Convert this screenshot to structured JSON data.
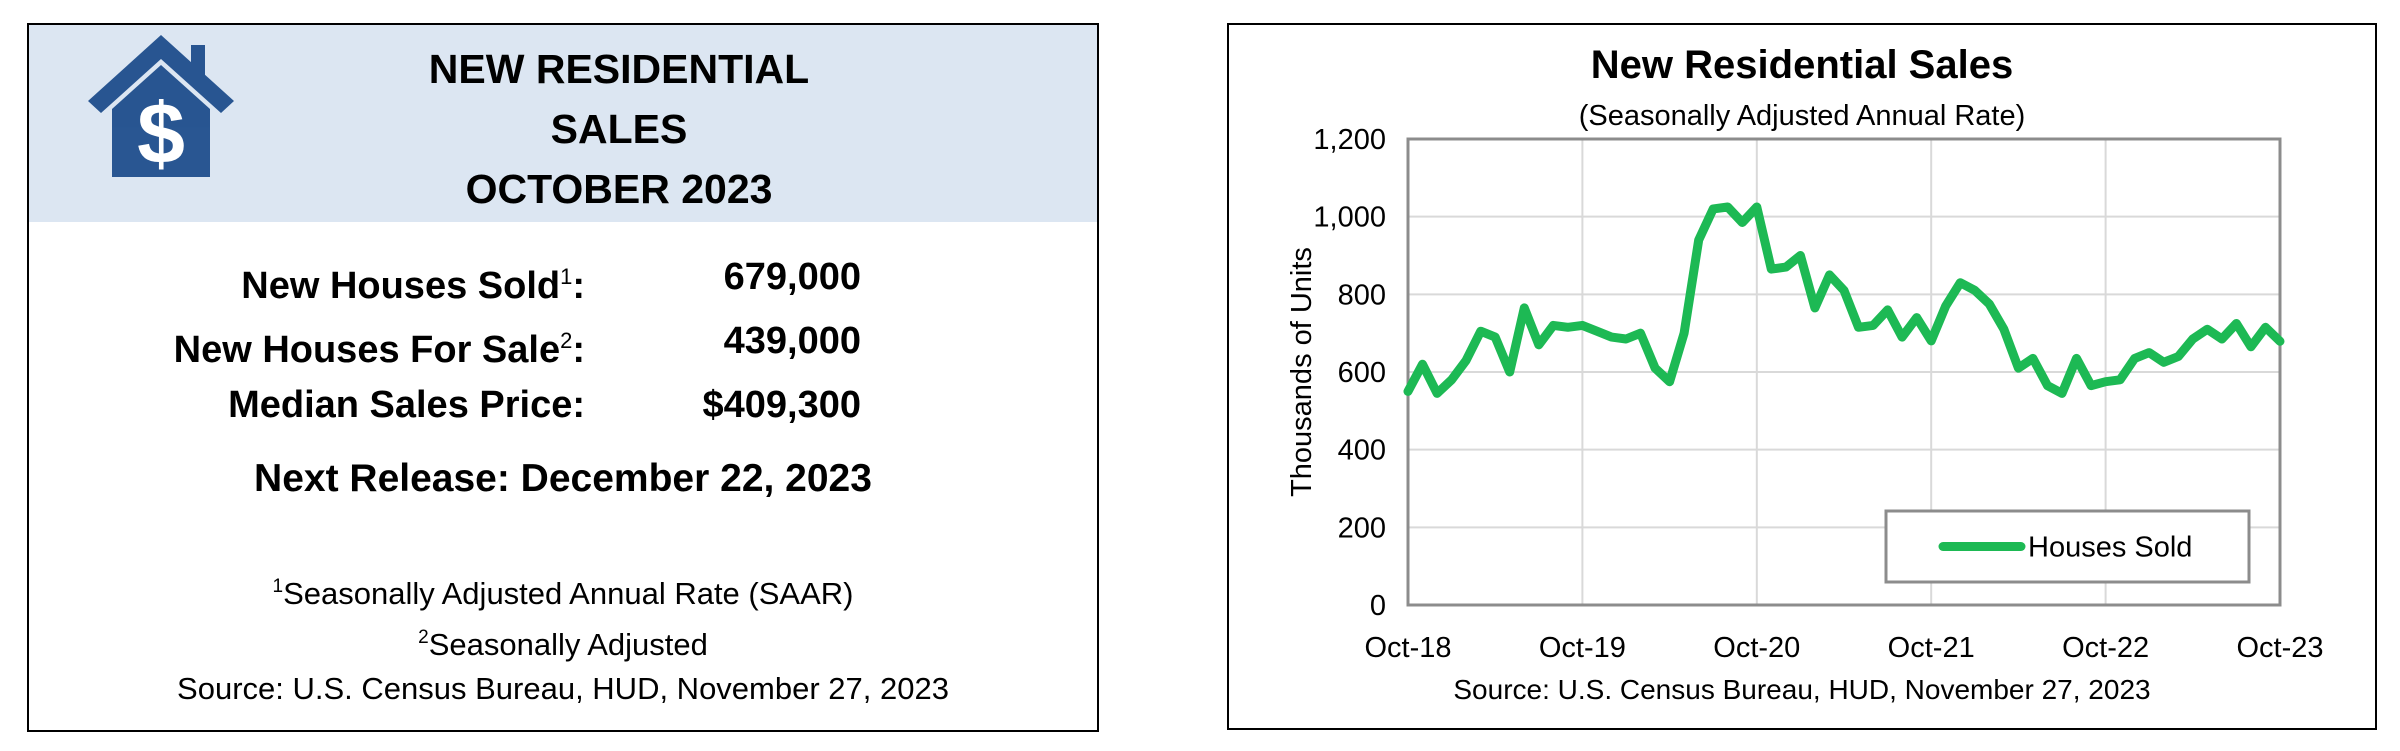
{
  "summary": {
    "title_lines": [
      "NEW RESIDENTIAL",
      "SALES",
      "OCTOBER 2023"
    ],
    "stats": [
      {
        "label": "New Houses Sold",
        "sup": "1",
        "suffix": ":",
        "value": "679,000"
      },
      {
        "label": "New Houses For Sale",
        "sup": "2",
        "suffix": ":",
        "value": "439,000"
      },
      {
        "label": "Median Sales Price:",
        "sup": "",
        "suffix": "",
        "value": "$409,300"
      }
    ],
    "next_release": "Next Release:  December 22, 2023",
    "footnotes": [
      {
        "sup": "1",
        "text": "Seasonally Adjusted Annual Rate (SAAR)"
      },
      {
        "sup": "2",
        "text": "Seasonally Adjusted"
      },
      {
        "sup": "",
        "text": "Source:  U.S. Census Bureau, HUD, November 27, 2023"
      }
    ],
    "logo_icon": "house-dollar-icon",
    "colors": {
      "banner": "#dce6f2",
      "logo": "#1f4e8c"
    }
  },
  "chart_data": {
    "type": "line",
    "title": "New Residential Sales",
    "subtitle": "(Seasonally Adjusted Annual Rate)",
    "ylabel": "Thousands of Units",
    "xlabel": "",
    "ylim": [
      0,
      1200
    ],
    "yticks": [
      "0",
      "200",
      "400",
      "600",
      "800",
      "1,000",
      "1,200"
    ],
    "ytick_values": [
      0,
      200,
      400,
      600,
      800,
      1000,
      1200
    ],
    "xticks": [
      "Oct-18",
      "Oct-19",
      "Oct-20",
      "Oct-21",
      "Oct-22",
      "Oct-23"
    ],
    "grid": true,
    "legend_position": "bottom-right",
    "source": "Source:  U.S. Census Bureau, HUD, November 27, 2023",
    "series": [
      {
        "name": "Houses Sold",
        "color": "#1db954",
        "x": [
          "Oct-18",
          "Nov-18",
          "Dec-18",
          "Jan-19",
          "Feb-19",
          "Mar-19",
          "Apr-19",
          "May-19",
          "Jun-19",
          "Jul-19",
          "Aug-19",
          "Sep-19",
          "Oct-19",
          "Nov-19",
          "Dec-19",
          "Jan-20",
          "Feb-20",
          "Mar-20",
          "Apr-20",
          "May-20",
          "Jun-20",
          "Jul-20",
          "Aug-20",
          "Sep-20",
          "Oct-20",
          "Nov-20",
          "Dec-20",
          "Jan-21",
          "Feb-21",
          "Mar-21",
          "Apr-21",
          "May-21",
          "Jun-21",
          "Jul-21",
          "Aug-21",
          "Sep-21",
          "Oct-21",
          "Nov-21",
          "Dec-21",
          "Jan-22",
          "Feb-22",
          "Mar-22",
          "Apr-22",
          "May-22",
          "Jun-22",
          "Jul-22",
          "Aug-22",
          "Sep-22",
          "Oct-22",
          "Nov-22",
          "Dec-22",
          "Jan-23",
          "Feb-23",
          "Mar-23",
          "Apr-23",
          "May-23",
          "Jun-23",
          "Jul-23",
          "Aug-23",
          "Sep-23",
          "Oct-23"
        ],
        "values": [
          550,
          620,
          545,
          580,
          630,
          705,
          690,
          600,
          765,
          670,
          720,
          715,
          720,
          705,
          690,
          685,
          700,
          610,
          575,
          700,
          940,
          1020,
          1025,
          985,
          1025,
          865,
          870,
          900,
          765,
          850,
          810,
          715,
          720,
          760,
          690,
          740,
          680,
          770,
          830,
          810,
          775,
          710,
          610,
          635,
          565,
          545,
          635,
          565,
          575,
          580,
          635,
          650,
          625,
          640,
          685,
          710,
          685,
          725,
          665,
          715,
          679
        ]
      }
    ]
  }
}
